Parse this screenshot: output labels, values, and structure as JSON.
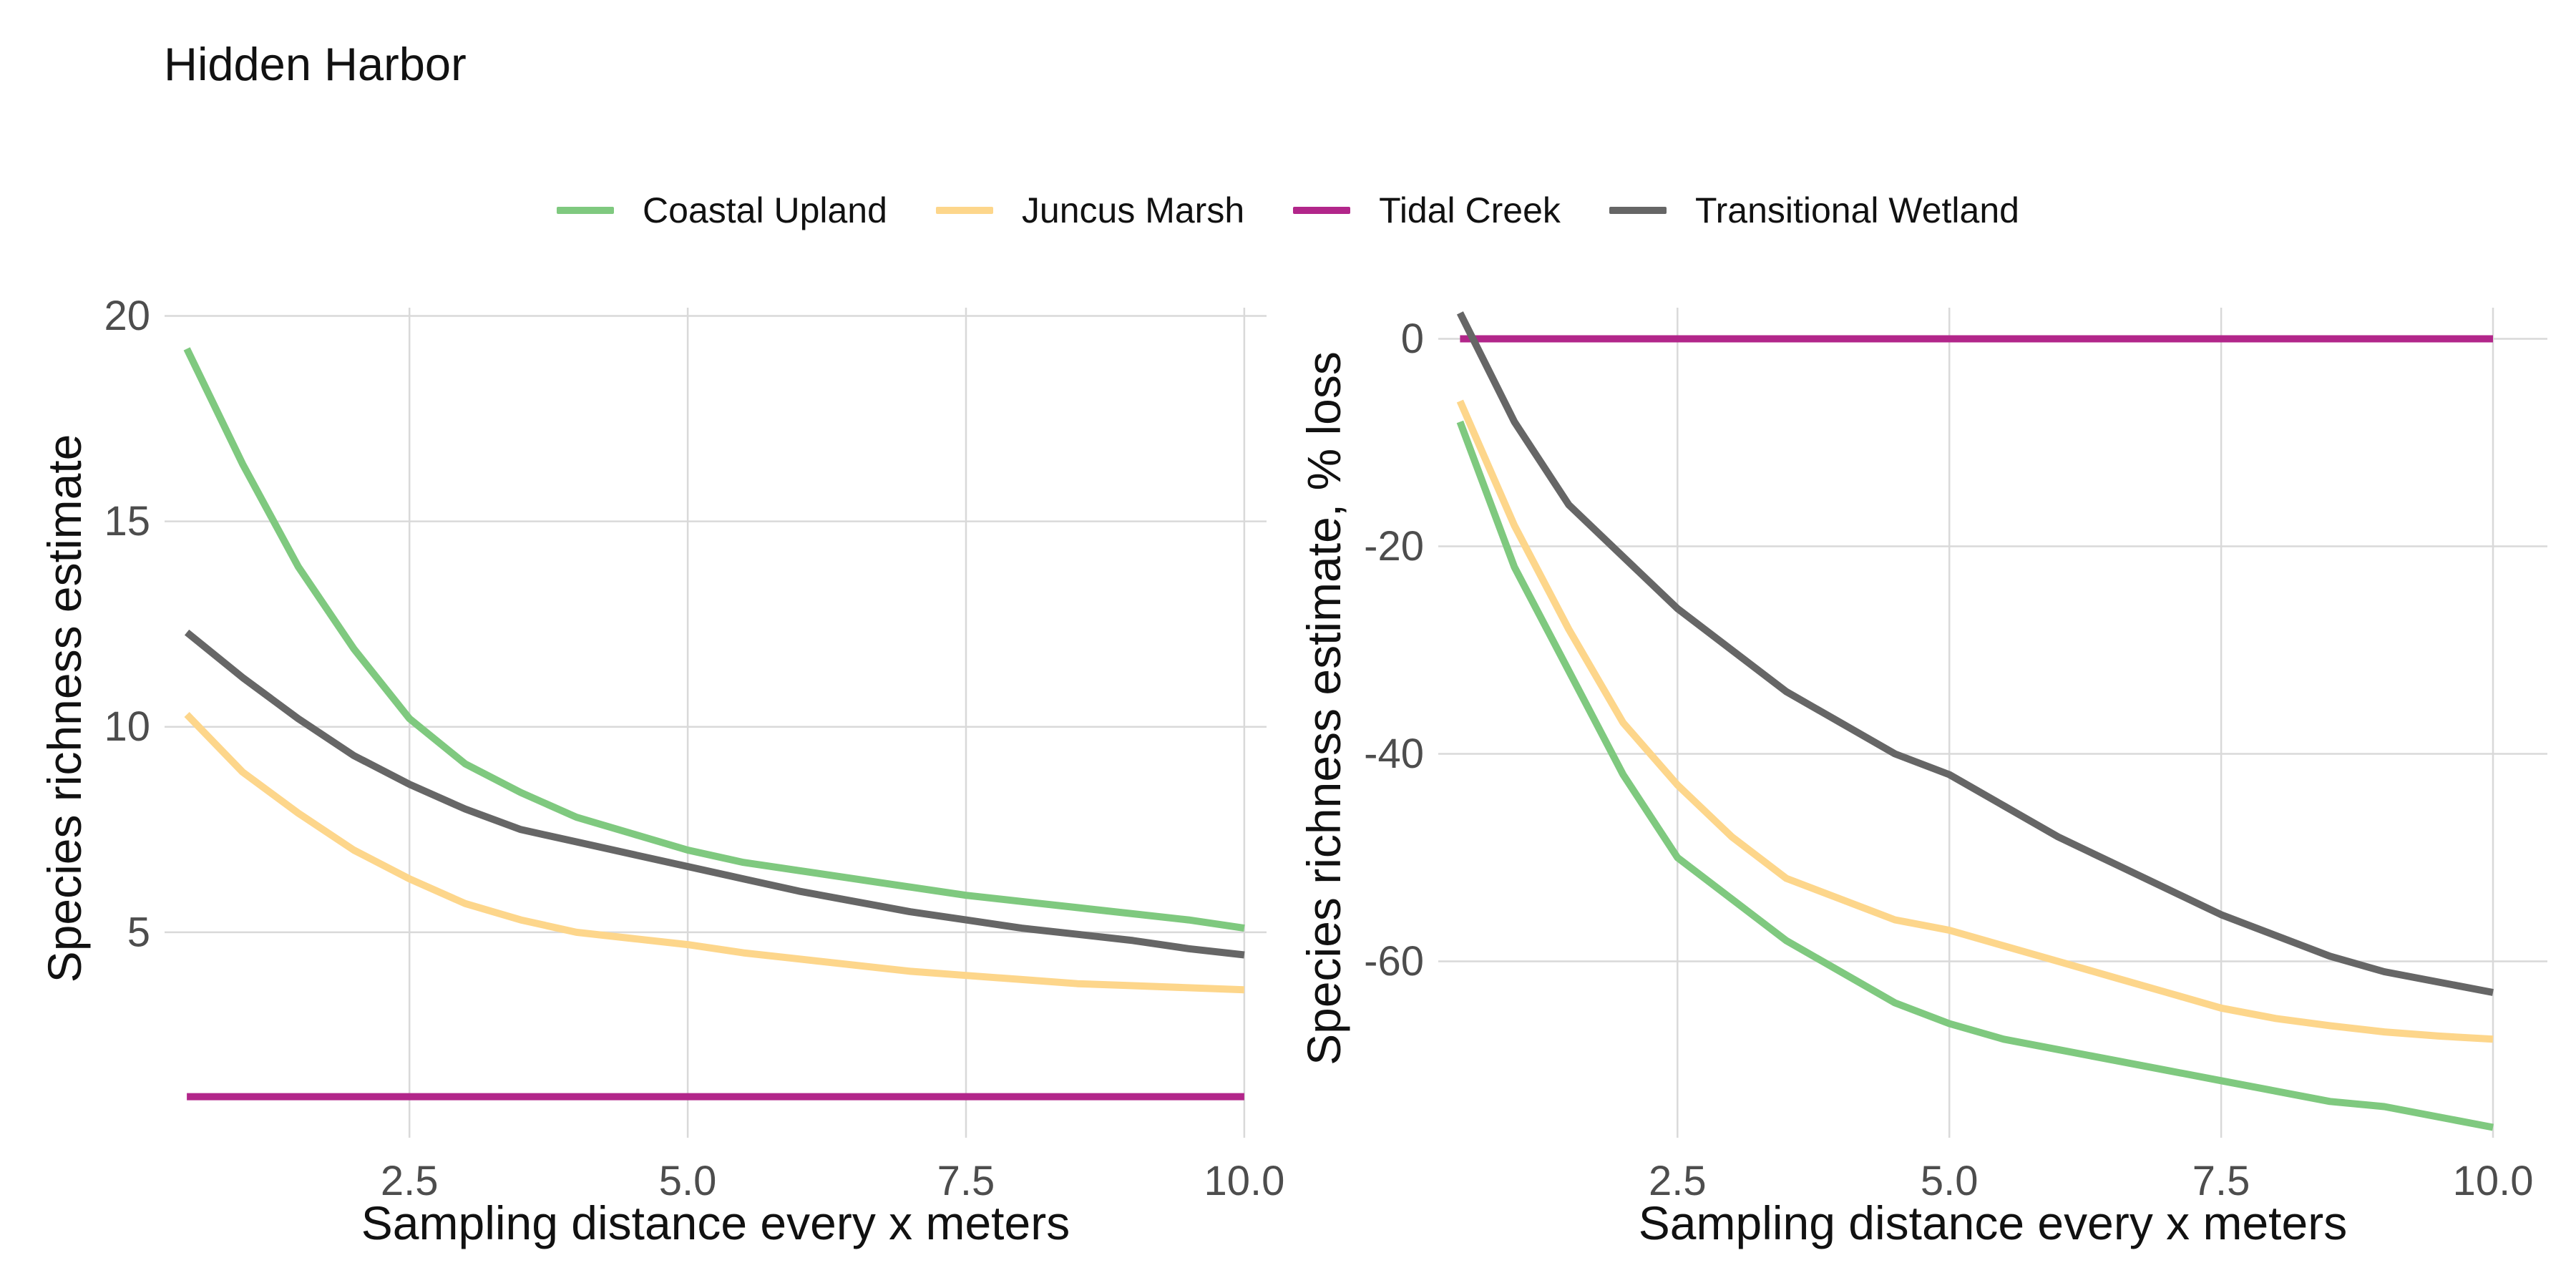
{
  "title": "Hidden Harbor",
  "legend": [
    {
      "label": "Coastal Upland",
      "color": "#7fc97f"
    },
    {
      "label": "Juncus Marsh",
      "color": "#fdd68b"
    },
    {
      "label": "Tidal Creek",
      "color": "#b2268a"
    },
    {
      "label": "Transitional Wetland",
      "color": "#666666"
    }
  ],
  "chart_data": [
    {
      "type": "line",
      "xlabel": "Sampling distance every x meters",
      "ylabel": "Species richness estimate",
      "xlim": [
        0.3,
        10.2
      ],
      "ylim": [
        0.0,
        20.2
      ],
      "xticks": [
        2.5,
        5.0,
        7.5,
        10.0
      ],
      "xtick_labels": [
        "2.5",
        "5.0",
        "7.5",
        "10.0"
      ],
      "yticks": [
        5,
        10,
        15,
        20
      ],
      "ytick_labels": [
        "5",
        "10",
        "15",
        "20"
      ],
      "grid": true,
      "legend_position": "top",
      "x": [
        0.5,
        1.0,
        1.5,
        2.0,
        2.5,
        3.0,
        3.5,
        4.0,
        4.5,
        5.0,
        5.5,
        6.0,
        6.5,
        7.0,
        7.5,
        8.0,
        8.5,
        9.0,
        9.5,
        10.0
      ],
      "series": [
        {
          "name": "Coastal Upland",
          "color": "#7fc97f",
          "values": [
            19.2,
            16.4,
            13.9,
            11.9,
            10.2,
            9.1,
            8.4,
            7.8,
            7.4,
            7.0,
            6.7,
            6.5,
            6.3,
            6.1,
            5.9,
            5.75,
            5.6,
            5.45,
            5.3,
            5.1
          ]
        },
        {
          "name": "Juncus Marsh",
          "color": "#fdd68b",
          "values": [
            10.3,
            8.9,
            7.9,
            7.0,
            6.3,
            5.7,
            5.3,
            5.0,
            4.85,
            4.7,
            4.5,
            4.35,
            4.2,
            4.05,
            3.95,
            3.85,
            3.75,
            3.7,
            3.65,
            3.6
          ]
        },
        {
          "name": "Tidal Creek",
          "color": "#b2268a",
          "values": [
            1.0,
            1.0,
            1.0,
            1.0,
            1.0,
            1.0,
            1.0,
            1.0,
            1.0,
            1.0,
            1.0,
            1.0,
            1.0,
            1.0,
            1.0,
            1.0,
            1.0,
            1.0,
            1.0,
            1.0
          ]
        },
        {
          "name": "Transitional Wetland",
          "color": "#666666",
          "values": [
            12.3,
            11.2,
            10.2,
            9.3,
            8.6,
            8.0,
            7.5,
            7.2,
            6.9,
            6.6,
            6.3,
            6.0,
            5.75,
            5.5,
            5.3,
            5.1,
            4.95,
            4.8,
            4.6,
            4.45
          ]
        }
      ]
    },
    {
      "type": "line",
      "xlabel": "Sampling distance every x meters",
      "ylabel": "Species richness estimate, % loss",
      "xlim": [
        0.3,
        10.5
      ],
      "ylim": [
        -77,
        3
      ],
      "xticks": [
        2.5,
        5.0,
        7.5,
        10.0
      ],
      "xtick_labels": [
        "2.5",
        "5.0",
        "7.5",
        "10.0"
      ],
      "yticks": [
        0,
        -20,
        -40,
        -60
      ],
      "ytick_labels": [
        "0",
        "-20",
        "-40",
        "-60"
      ],
      "grid": true,
      "legend_position": "top",
      "x": [
        0.5,
        1.0,
        1.5,
        2.0,
        2.5,
        3.0,
        3.5,
        4.0,
        4.5,
        5.0,
        5.5,
        6.0,
        6.5,
        7.0,
        7.5,
        8.0,
        8.5,
        9.0,
        9.5,
        10.0
      ],
      "series": [
        {
          "name": "Coastal Upland",
          "color": "#7fc97f",
          "values": [
            -8,
            -22,
            -32,
            -42,
            -50,
            -54,
            -58,
            -61,
            -64,
            -66,
            -67.5,
            -68.5,
            -69.5,
            -70.5,
            -71.5,
            -72.5,
            -73.5,
            -74,
            -75,
            -76
          ]
        },
        {
          "name": "Juncus Marsh",
          "color": "#fdd68b",
          "values": [
            -6,
            -18,
            -28,
            -37,
            -43,
            -48,
            -52,
            -54,
            -56,
            -57,
            -58.5,
            -60,
            -61.5,
            -63,
            -64.5,
            -65.5,
            -66.2,
            -66.8,
            -67.2,
            -67.5
          ]
        },
        {
          "name": "Tidal Creek",
          "color": "#b2268a",
          "values": [
            0,
            0,
            0,
            0,
            0,
            0,
            0,
            0,
            0,
            0,
            0,
            0,
            0,
            0,
            0,
            0,
            0,
            0,
            0,
            0
          ]
        },
        {
          "name": "Transitional Wetland",
          "color": "#666666",
          "values": [
            2.5,
            -8,
            -16,
            -21,
            -26,
            -30,
            -34,
            -37,
            -40,
            -42,
            -45,
            -48,
            -50.5,
            -53,
            -55.5,
            -57.5,
            -59.5,
            -61,
            -62,
            -63
          ]
        }
      ]
    }
  ]
}
